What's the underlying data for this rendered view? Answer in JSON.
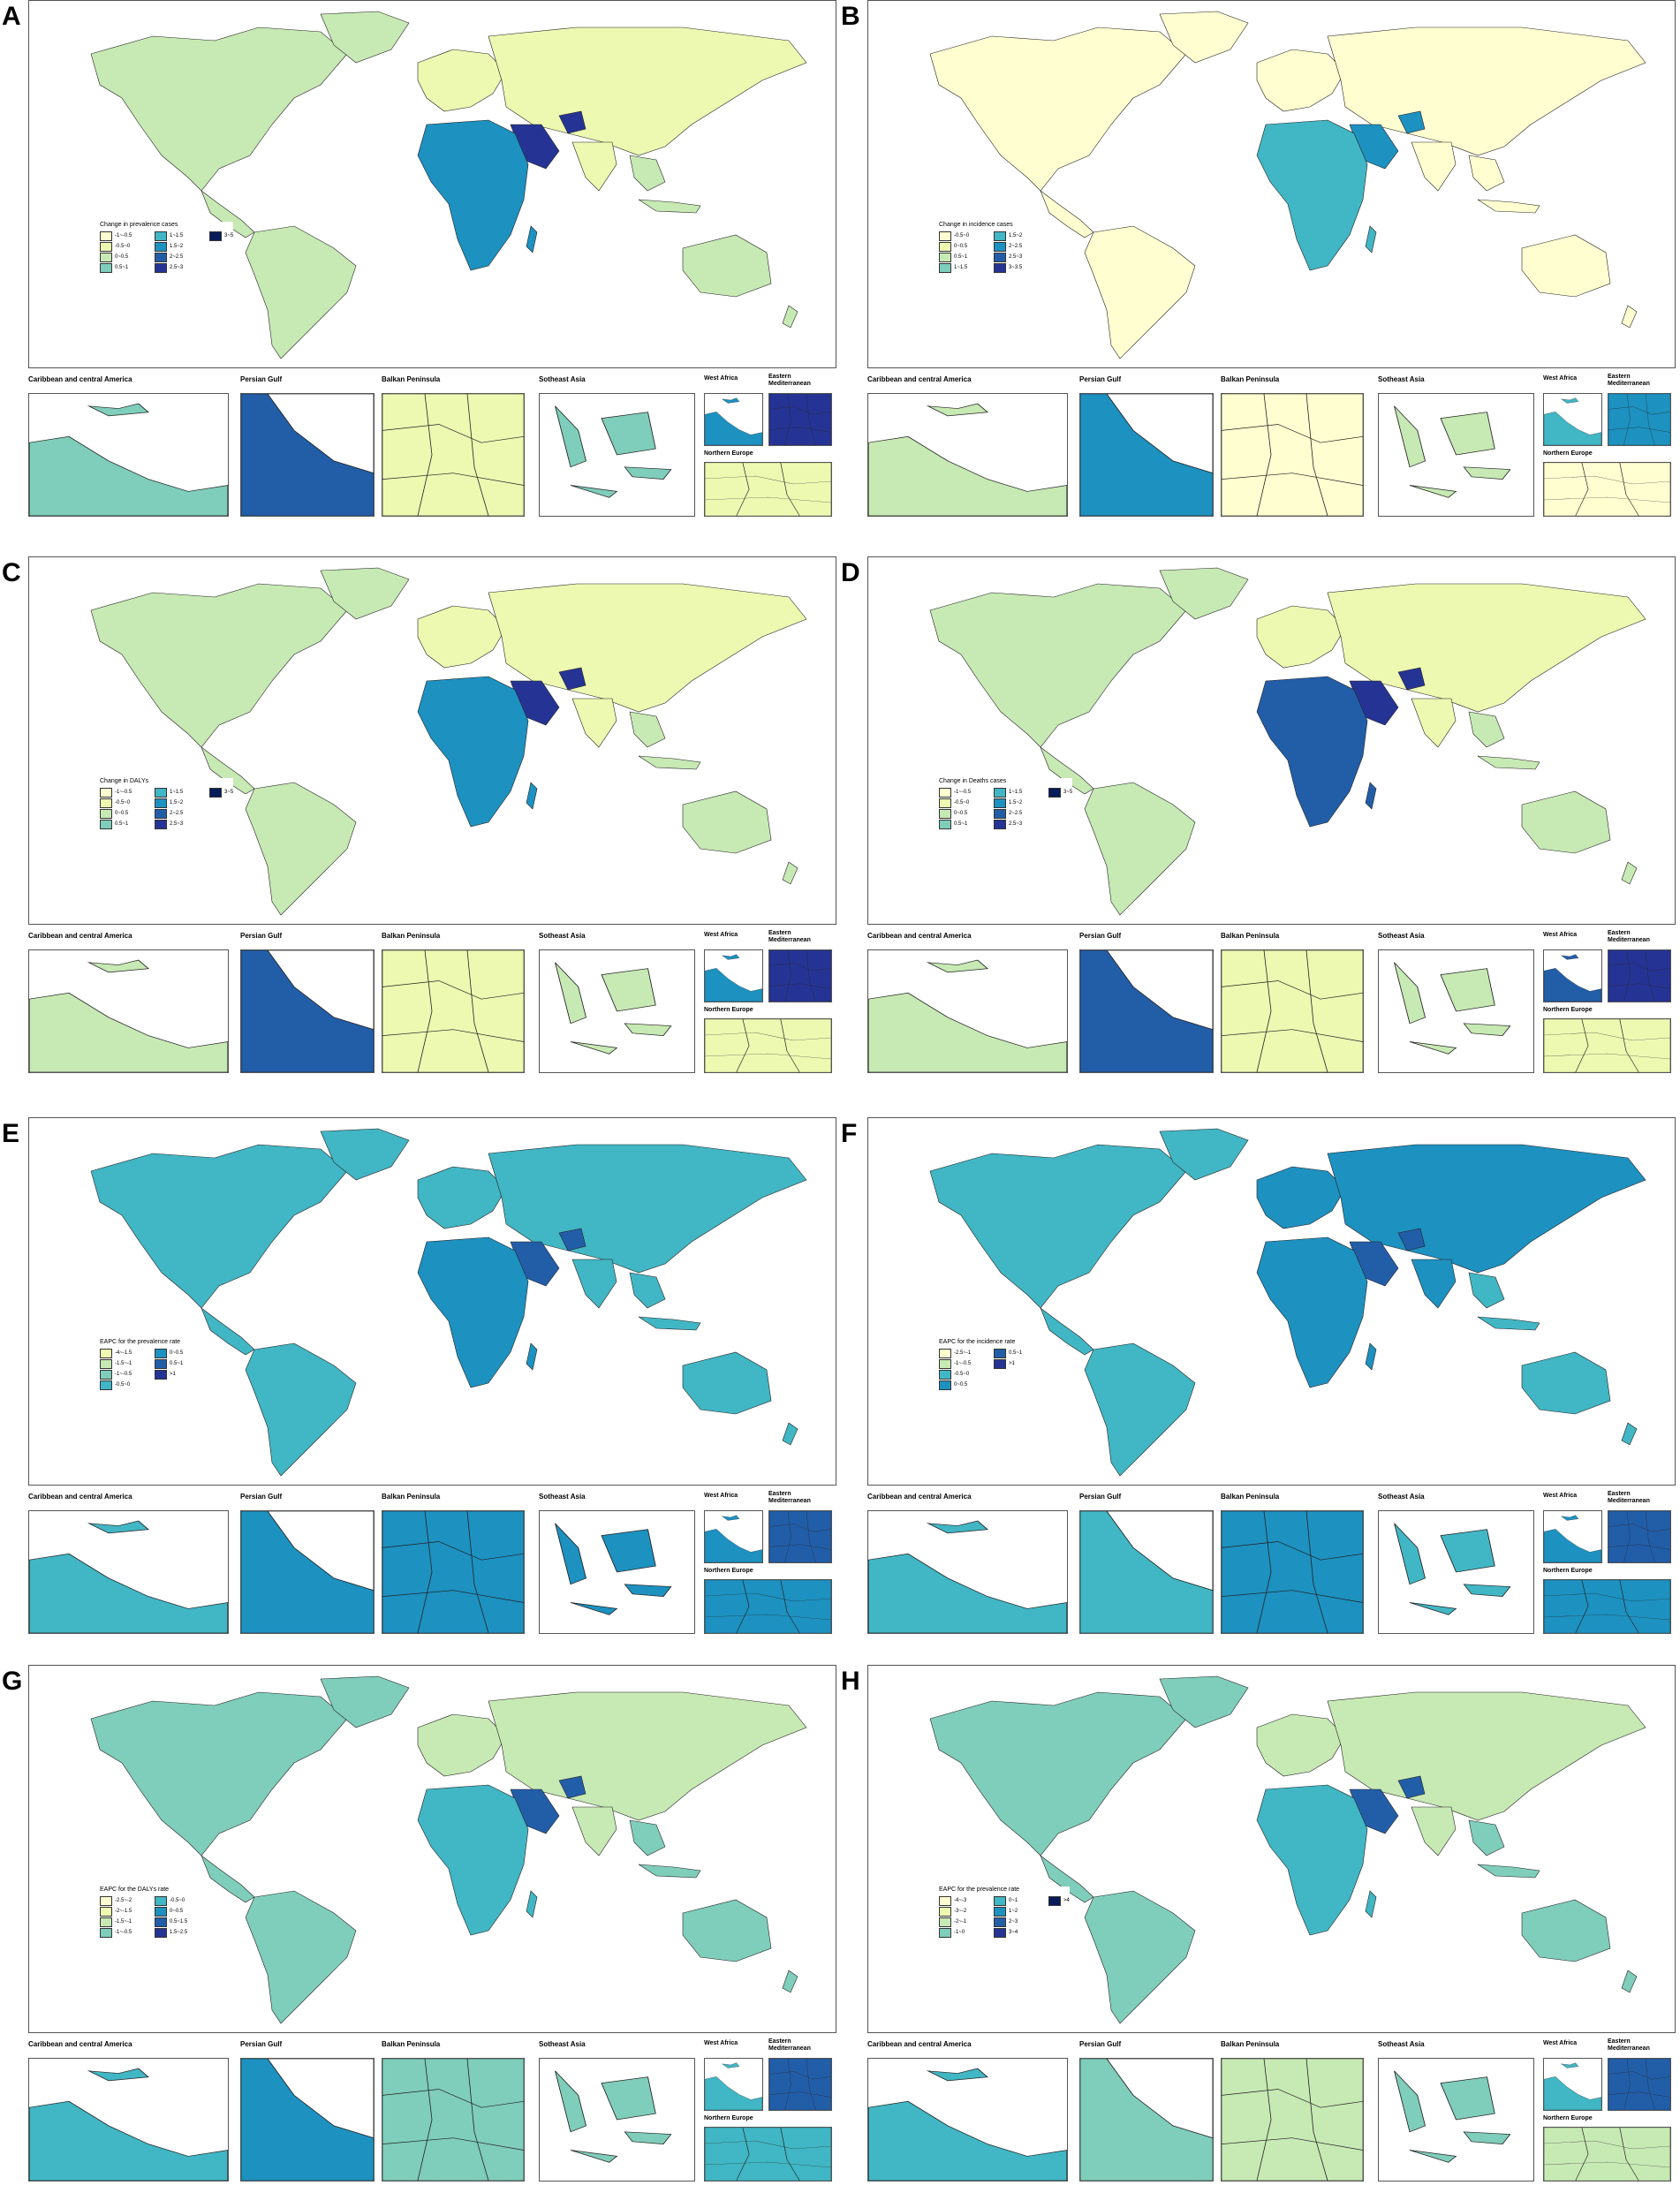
{
  "figure": {
    "inset_titles": {
      "caribbean": "Caribbean and central America",
      "persian_gulf": "Persian Gulf",
      "balkan": "Balkan Peninsula",
      "seasia": "Sotheast Asia",
      "west_africa": "West Africa",
      "eastern_med": "Eastern Mediterranean",
      "northern_europe": "Northern Europe"
    },
    "panels": [
      {
        "letter": "A",
        "legend_title": "Change in prevalence cases",
        "legend_items": [
          "-1~-0.5",
          "-0.5~0",
          "0~0.5",
          "0.5~1",
          "1~1.5",
          "1.5~2",
          "2~2.5",
          "2.5~3",
          "3~5"
        ],
        "legend_colors": [
          "#fffed0",
          "#edf8b1",
          "#c7e9b4",
          "#7fcdbb",
          "#41b6c4",
          "#1d91c0",
          "#225ea8",
          "#253494",
          "#081d58"
        ],
        "land": "#c7e9b4",
        "africa": "#1d91c0",
        "asia": "#edf8b1",
        "hot": "#253494",
        "gulf": "#225ea8",
        "balkan": "#edf8b1",
        "caribbean": "#7fcdbb",
        "seasia": "#7fcdbb",
        "neurope": "#edf8b1"
      },
      {
        "letter": "B",
        "legend_title": "Change in incidence cases",
        "legend_items": [
          "-0.5~0",
          "0~0.5",
          "0.5~1",
          "1~1.5",
          "1.5~2",
          "2~2.5",
          "2.5~3",
          "3~3.5"
        ],
        "legend_colors": [
          "#fffed0",
          "#edf8b1",
          "#c7e9b4",
          "#7fcdbb",
          "#41b6c4",
          "#1d91c0",
          "#225ea8",
          "#253494"
        ],
        "land": "#fffed0",
        "africa": "#41b6c4",
        "asia": "#fffed0",
        "hot": "#1d91c0",
        "gulf": "#1d91c0",
        "balkan": "#fffed0",
        "caribbean": "#c7e9b4",
        "seasia": "#c7e9b4",
        "neurope": "#fffed0"
      },
      {
        "letter": "C",
        "legend_title": "Change in DALYs",
        "legend_items": [
          "-1~-0.5",
          "-0.5~0",
          "0~0.5",
          "0.5~1",
          "1~1.5",
          "1.5~2",
          "2~2.5",
          "2.5~3",
          "3~5"
        ],
        "legend_colors": [
          "#fffed0",
          "#edf8b1",
          "#c7e9b4",
          "#7fcdbb",
          "#41b6c4",
          "#1d91c0",
          "#225ea8",
          "#253494",
          "#081d58"
        ],
        "land": "#c7e9b4",
        "africa": "#1d91c0",
        "asia": "#edf8b1",
        "hot": "#253494",
        "gulf": "#225ea8",
        "balkan": "#edf8b1",
        "caribbean": "#c7e9b4",
        "seasia": "#c7e9b4",
        "neurope": "#edf8b1"
      },
      {
        "letter": "D",
        "legend_title": "Change in Deaths cases",
        "legend_items": [
          "-1~-0.5",
          "-0.5~0",
          "0~0.5",
          "0.5~1",
          "1~1.5",
          "1.5~2",
          "2~2.5",
          "2.5~3",
          "3~5"
        ],
        "legend_colors": [
          "#fffed0",
          "#edf8b1",
          "#c7e9b4",
          "#7fcdbb",
          "#41b6c4",
          "#1d91c0",
          "#225ea8",
          "#253494",
          "#081d58"
        ],
        "land": "#c7e9b4",
        "africa": "#225ea8",
        "asia": "#edf8b1",
        "hot": "#253494",
        "gulf": "#225ea8",
        "balkan": "#edf8b1",
        "caribbean": "#c7e9b4",
        "seasia": "#c7e9b4",
        "neurope": "#edf8b1"
      },
      {
        "letter": "E",
        "legend_title": "EAPC for the prevalence rate",
        "legend_items": [
          "-4~-1.5",
          "-1.5~-1",
          "-1~-0.5",
          "-0.5~0",
          "0~0.5",
          "0.5~1",
          ">1"
        ],
        "legend_colors": [
          "#edf8b1",
          "#c7e9b4",
          "#7fcdbb",
          "#41b6c4",
          "#1d91c0",
          "#225ea8",
          "#253494"
        ],
        "land": "#41b6c4",
        "africa": "#1d91c0",
        "asia": "#41b6c4",
        "hot": "#225ea8",
        "gulf": "#1d91c0",
        "balkan": "#1d91c0",
        "caribbean": "#41b6c4",
        "seasia": "#1d91c0",
        "neurope": "#1d91c0"
      },
      {
        "letter": "F",
        "legend_title": "EAPC for the incidence rate",
        "legend_items": [
          "-2.5~-1",
          "-1~-0.5",
          "-0.5~0",
          "0~0.5",
          "0.5~1",
          ">1"
        ],
        "legend_colors": [
          "#fffed0",
          "#c7e9b4",
          "#41b6c4",
          "#1d91c0",
          "#225ea8",
          "#253494"
        ],
        "land": "#41b6c4",
        "africa": "#1d91c0",
        "asia": "#1d91c0",
        "hot": "#225ea8",
        "gulf": "#41b6c4",
        "balkan": "#1d91c0",
        "caribbean": "#41b6c4",
        "seasia": "#41b6c4",
        "neurope": "#1d91c0"
      },
      {
        "letter": "G",
        "legend_title": "EAPC for the DALYs rate",
        "legend_items": [
          "-2.5~-2",
          "-2~-1.5",
          "-1.5~-1",
          "-1~-0.5",
          "-0.5~0",
          "0~0.5",
          "0.5~1.5",
          "1.5~2.5"
        ],
        "legend_colors": [
          "#fffed0",
          "#edf8b1",
          "#c7e9b4",
          "#7fcdbb",
          "#41b6c4",
          "#1d91c0",
          "#225ea8",
          "#253494"
        ],
        "land": "#7fcdbb",
        "africa": "#41b6c4",
        "asia": "#c7e9b4",
        "hot": "#225ea8",
        "gulf": "#1d91c0",
        "balkan": "#7fcdbb",
        "caribbean": "#41b6c4",
        "seasia": "#7fcdbb",
        "neurope": "#41b6c4"
      },
      {
        "letter": "H",
        "legend_title": "EAPC for the prevalence rate",
        "legend_items": [
          "-4~-3",
          "-3~-2",
          "-2~-1",
          "-1~0",
          "0~1",
          "1~2",
          "2~3",
          "3~4",
          ">4"
        ],
        "legend_colors": [
          "#fffed0",
          "#edf8b1",
          "#c7e9b4",
          "#7fcdbb",
          "#41b6c4",
          "#1d91c0",
          "#225ea8",
          "#253494",
          "#081d58"
        ],
        "land": "#7fcdbb",
        "africa": "#41b6c4",
        "asia": "#c7e9b4",
        "hot": "#225ea8",
        "gulf": "#7fcdbb",
        "balkan": "#c7e9b4",
        "caribbean": "#41b6c4",
        "seasia": "#7fcdbb",
        "neurope": "#c7e9b4"
      }
    ]
  }
}
